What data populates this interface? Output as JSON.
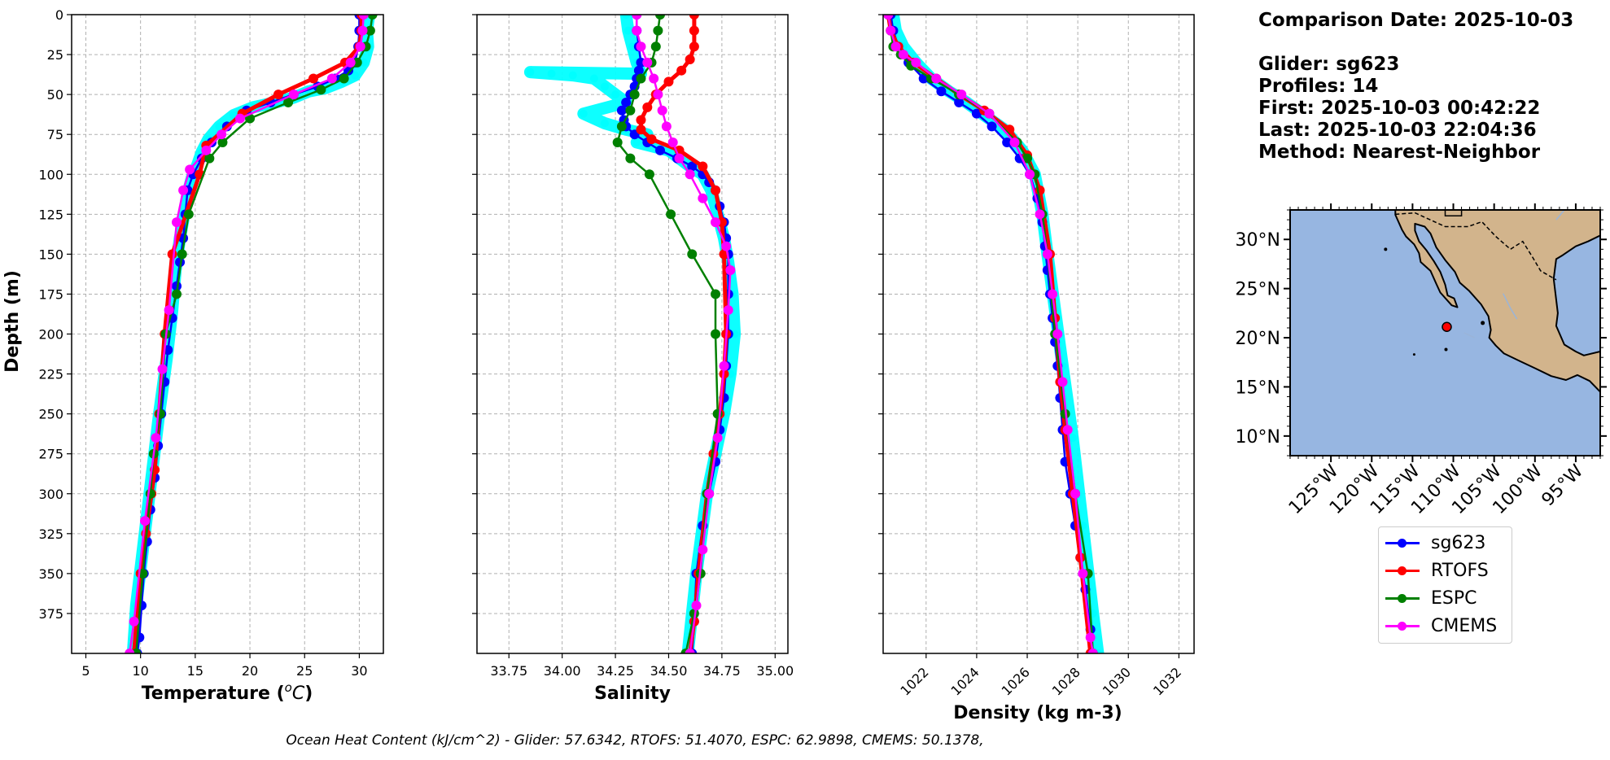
{
  "chart_data": [
    {
      "type": "line",
      "panel": "temperature",
      "xlabel": "Temperature ($^{o}C$)",
      "xlabel_text": "Temperature (",
      "xlabel_sup": "o",
      "xlabel_unit": "C",
      "xlabel_close": ")",
      "ylabel": "Depth (m)",
      "xlim": [
        3.7,
        32.2
      ],
      "ylim": [
        400,
        0
      ],
      "xticks": [
        5,
        10,
        15,
        20,
        25,
        30
      ],
      "yticks": [
        0,
        25,
        50,
        75,
        100,
        125,
        150,
        175,
        200,
        225,
        250,
        275,
        300,
        325,
        350,
        375
      ],
      "grid": true,
      "series": [
        {
          "name": "sg623 (profiles)",
          "color": "#00ffff",
          "style": "scatter",
          "x": [
            30.9,
            30.7,
            30.8,
            30.4,
            29.6,
            28.4,
            26.9,
            25.4,
            24.0,
            22.3,
            20.3,
            18.5,
            17.2,
            16.2,
            15.6,
            15.2,
            14.7,
            14.3,
            14.0,
            13.6,
            13.2,
            12.9,
            12.4,
            11.7,
            11.0,
            10.3,
            9.6,
            9.3
          ],
          "y": [
            0,
            10,
            20,
            30,
            38,
            42,
            46,
            48,
            52,
            55,
            58,
            63,
            70,
            78,
            86,
            94,
            102,
            112,
            125,
            140,
            160,
            185,
            215,
            250,
            290,
            330,
            370,
            400
          ]
        },
        {
          "name": "sg623",
          "color": "#0000ff",
          "x": [
            30.0,
            30.0,
            29.9,
            29.6,
            29.0,
            27.8,
            26.2,
            24.0,
            21.9,
            19.7,
            17.9,
            16.5,
            15.6,
            14.8,
            14.3,
            14.1,
            13.9,
            13.6,
            13.3,
            12.9,
            12.5,
            12.2,
            11.9,
            11.6,
            11.3,
            10.9,
            10.6,
            10.3,
            10.1,
            9.9,
            9.7
          ],
          "y": [
            0,
            10,
            20,
            30,
            35,
            40,
            45,
            50,
            55,
            60,
            70,
            80,
            90,
            100,
            110,
            125,
            140,
            155,
            170,
            190,
            210,
            230,
            250,
            270,
            290,
            310,
            330,
            350,
            370,
            390,
            400
          ]
        },
        {
          "name": "RTOFS",
          "color": "#ff0000",
          "x": [
            30.2,
            30.2,
            30.0,
            28.7,
            25.8,
            22.6,
            19.3,
            16.0,
            15.4,
            12.9,
            12.2,
            11.7,
            11.3,
            11.0,
            10.5,
            10.0,
            9.4
          ],
          "y": [
            0,
            10,
            20,
            30,
            40,
            50,
            62,
            82,
            100,
            150,
            200,
            250,
            285,
            300,
            325,
            350,
            400
          ]
        },
        {
          "name": "ESPC",
          "color": "#008000",
          "x": [
            31.2,
            31.0,
            30.6,
            29.8,
            28.6,
            26.5,
            23.5,
            20.0,
            17.5,
            16.3,
            14.4,
            13.8,
            13.3,
            12.3,
            11.8,
            11.2,
            10.9,
            10.2,
            9.6
          ],
          "y": [
            0,
            10,
            20,
            30,
            40,
            47,
            55,
            65,
            80,
            90,
            125,
            150,
            175,
            200,
            250,
            275,
            300,
            350,
            400
          ]
        },
        {
          "name": "CMEMS",
          "color": "#ff00ff",
          "x": [
            30.4,
            30.3,
            30.1,
            29.2,
            27.5,
            24.0,
            19.1,
            17.4,
            16.0,
            14.5,
            13.9,
            13.3,
            12.6,
            12.0,
            11.4,
            10.4,
            9.4,
            9.0
          ],
          "y": [
            0,
            10,
            20,
            30,
            40,
            50,
            65,
            75,
            85,
            97,
            110,
            130,
            185,
            222,
            265,
            317,
            380,
            400
          ]
        }
      ]
    },
    {
      "type": "line",
      "panel": "salinity",
      "xlabel": "Salinity",
      "xlim": [
        33.6,
        35.06
      ],
      "ylim": [
        400,
        0
      ],
      "xticks": [
        33.75,
        34.0,
        34.25,
        34.5,
        34.75,
        35.0
      ],
      "xticklabels": [
        "33.75",
        "34.00",
        "34.25",
        "34.50",
        "34.75",
        "35.00"
      ],
      "grid": true,
      "series": [
        {
          "name": "sg623 (profiles)",
          "color": "#00ffff",
          "style": "scatter",
          "x": [
            34.3,
            34.31,
            34.33,
            34.35,
            34.37,
            33.85,
            33.95,
            34.05,
            34.15,
            34.2,
            34.25,
            34.3,
            34.1,
            34.2,
            34.3,
            34.4,
            34.35,
            34.5,
            34.55,
            34.6,
            34.66,
            34.7,
            34.73,
            34.76,
            34.78,
            34.8,
            34.81,
            34.79,
            34.76,
            34.72,
            34.68,
            34.63,
            34.59
          ],
          "y": [
            0,
            10,
            20,
            30,
            37,
            36,
            37,
            38,
            40,
            45,
            50,
            55,
            62,
            68,
            72,
            75,
            80,
            85,
            90,
            95,
            100,
            110,
            125,
            140,
            155,
            175,
            200,
            225,
            250,
            275,
            300,
            350,
            400
          ]
        },
        {
          "name": "sg623",
          "color": "#0000ff",
          "x": [
            34.35,
            34.35,
            34.36,
            34.37,
            34.36,
            34.35,
            34.34,
            34.32,
            34.3,
            34.28,
            34.29,
            34.3,
            34.34,
            34.4,
            34.46,
            34.54,
            34.61,
            34.66,
            34.69,
            34.72,
            34.74,
            34.76,
            34.77,
            34.78,
            34.78,
            34.78,
            34.78,
            34.77,
            34.76,
            34.74,
            34.72,
            34.69,
            34.66,
            34.63,
            34.62,
            34.61
          ],
          "y": [
            0,
            10,
            20,
            30,
            35,
            40,
            45,
            50,
            55,
            60,
            66,
            70,
            75,
            80,
            85,
            90,
            95,
            100,
            105,
            110,
            120,
            130,
            140,
            150,
            160,
            175,
            200,
            220,
            240,
            260,
            280,
            300,
            320,
            350,
            380,
            400
          ]
        },
        {
          "name": "RTOFS",
          "color": "#ff0000",
          "x": [
            34.62,
            34.62,
            34.62,
            34.6,
            34.56,
            34.5,
            34.44,
            34.4,
            34.37,
            34.37,
            34.42,
            34.55,
            34.66,
            34.72,
            34.75,
            34.76,
            34.77,
            34.76,
            34.74,
            34.71,
            34.68,
            34.64,
            34.62,
            34.6
          ],
          "y": [
            0,
            10,
            20,
            28,
            35,
            42,
            50,
            58,
            66,
            72,
            78,
            85,
            95,
            110,
            130,
            150,
            200,
            225,
            250,
            275,
            300,
            350,
            380,
            400
          ]
        },
        {
          "name": "ESPC",
          "color": "#008000",
          "x": [
            34.46,
            34.45,
            34.44,
            34.42,
            34.37,
            34.34,
            34.32,
            34.28,
            34.26,
            34.32,
            34.41,
            34.51,
            34.61,
            34.72,
            34.72,
            34.73,
            34.68,
            34.65,
            34.62,
            34.58
          ],
          "y": [
            0,
            10,
            20,
            30,
            40,
            50,
            60,
            70,
            80,
            90,
            100,
            125,
            150,
            175,
            200,
            250,
            300,
            350,
            375,
            400
          ]
        },
        {
          "name": "CMEMS",
          "color": "#ff00ff",
          "x": [
            34.35,
            34.35,
            34.37,
            34.4,
            34.43,
            34.45,
            34.47,
            34.49,
            34.52,
            34.55,
            34.6,
            34.66,
            34.72,
            34.77,
            34.79,
            34.78,
            34.76,
            34.73,
            34.69,
            34.66,
            34.63,
            34.6
          ],
          "y": [
            0,
            10,
            20,
            30,
            40,
            50,
            60,
            70,
            80,
            90,
            100,
            115,
            130,
            145,
            160,
            185,
            220,
            265,
            300,
            335,
            370,
            400
          ]
        }
      ]
    },
    {
      "type": "line",
      "panel": "density",
      "xlabel": "Density (kg m-3)",
      "xlim": [
        1020.3,
        1032.6
      ],
      "ylim": [
        400,
        0
      ],
      "xticks": [
        1022,
        1024,
        1026,
        1028,
        1030,
        1032
      ],
      "grid": true,
      "series": [
        {
          "name": "sg623 (profiles)",
          "color": "#00ffff",
          "style": "scatter",
          "x": [
            1020.7,
            1020.8,
            1021.1,
            1021.6,
            1022.2,
            1022.9,
            1023.6,
            1024.3,
            1025.1,
            1025.8,
            1026.3,
            1026.6,
            1026.8,
            1027.1,
            1027.4,
            1027.8,
            1028.2,
            1028.6,
            1028.8
          ],
          "y": [
            0,
            10,
            20,
            30,
            40,
            48,
            55,
            63,
            72,
            85,
            100,
            125,
            150,
            185,
            220,
            265,
            320,
            375,
            400
          ]
        },
        {
          "name": "sg623",
          "color": "#0000ff",
          "x": [
            1020.6,
            1020.7,
            1020.9,
            1021.3,
            1021.9,
            1022.6,
            1023.3,
            1024.0,
            1024.6,
            1025.2,
            1025.7,
            1026.1,
            1026.4,
            1026.6,
            1026.7,
            1026.8,
            1026.9,
            1027.0,
            1027.1,
            1027.2,
            1027.3,
            1027.4,
            1027.5,
            1027.7,
            1027.9,
            1028.1,
            1028.3,
            1028.5,
            1028.6
          ],
          "y": [
            0,
            10,
            20,
            30,
            40,
            48,
            55,
            62,
            70,
            80,
            90,
            100,
            115,
            130,
            145,
            160,
            175,
            190,
            205,
            220,
            240,
            260,
            280,
            300,
            320,
            340,
            360,
            385,
            400
          ]
        },
        {
          "name": "RTOFS",
          "color": "#ff0000",
          "x": [
            1020.5,
            1020.6,
            1020.9,
            1021.5,
            1022.4,
            1023.3,
            1024.3,
            1025.3,
            1026.0,
            1026.5,
            1026.9,
            1027.1,
            1027.3,
            1027.5,
            1027.8,
            1028.1,
            1028.5
          ],
          "y": [
            0,
            10,
            20,
            30,
            40,
            50,
            60,
            72,
            88,
            110,
            150,
            190,
            230,
            260,
            300,
            340,
            400
          ]
        },
        {
          "name": "ESPC",
          "color": "#008000",
          "x": [
            1020.5,
            1020.6,
            1020.7,
            1021.0,
            1021.4,
            1022.2,
            1023.3,
            1024.5,
            1025.6,
            1026.0,
            1026.3,
            1026.6,
            1026.8,
            1027.1,
            1027.5,
            1027.9,
            1028.4,
            1028.6
          ],
          "y": [
            0,
            10,
            20,
            25,
            32,
            40,
            50,
            62,
            80,
            90,
            100,
            125,
            150,
            200,
            250,
            300,
            350,
            400
          ]
        },
        {
          "name": "CMEMS",
          "color": "#ff00ff",
          "x": [
            1020.5,
            1020.6,
            1020.8,
            1021.1,
            1021.6,
            1022.4,
            1023.4,
            1024.5,
            1025.5,
            1026.1,
            1026.5,
            1026.8,
            1027.0,
            1027.2,
            1027.4,
            1027.6,
            1027.9,
            1028.2,
            1028.5,
            1028.6
          ],
          "y": [
            0,
            10,
            20,
            25,
            30,
            40,
            50,
            62,
            80,
            100,
            125,
            150,
            175,
            200,
            230,
            260,
            300,
            350,
            390,
            400
          ]
        }
      ]
    },
    {
      "type": "map",
      "panel": "locator",
      "lon_range": [
        -130,
        -92
      ],
      "lat_range": [
        8,
        33
      ],
      "lat_ticks": [
        10,
        15,
        20,
        25,
        30
      ],
      "lat_tick_labels": [
        "10°N",
        "15°N",
        "20°N",
        "25°N",
        "30°N"
      ],
      "lon_ticks": [
        -125,
        -120,
        -115,
        -110,
        -105,
        -100,
        -95
      ],
      "lon_tick_labels": [
        "125°W",
        "120°W",
        "115°W",
        "110°W",
        "105°W",
        "100°W",
        "95°W"
      ],
      "marker": {
        "lon": -110.8,
        "lat": 21.1,
        "color": "#ff0000"
      },
      "ocean_color": "#97b6e1",
      "land_color": "#d2b48c"
    }
  ],
  "info": {
    "comparison": "Comparison Date: 2025-10-03",
    "glider": "Glider: sg623",
    "profiles": "Profiles: 14",
    "first": "First: 2025-10-03 00:42:22",
    "last": "Last: 2025-10-03 22:04:36",
    "method": "Method: Nearest-Neighbor"
  },
  "legend": [
    {
      "label": "sg623",
      "color": "#0000ff"
    },
    {
      "label": "RTOFS",
      "color": "#ff0000"
    },
    {
      "label": "ESPC",
      "color": "#008000"
    },
    {
      "label": "CMEMS",
      "color": "#ff00ff"
    }
  ],
  "footer": "Ocean Heat Content (kJ/cm^2) - Glider: 57.6342,  RTOFS: 51.4070,  ESPC: 62.9898,  CMEMS: 50.1378,"
}
